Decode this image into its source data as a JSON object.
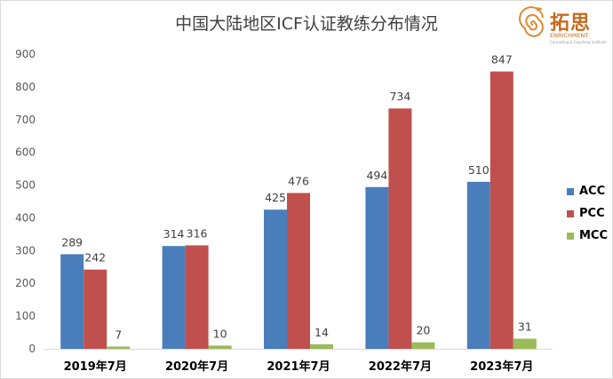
{
  "chart_data": {
    "type": "bar",
    "title": "中国大陆地区ICF认证教练分布情况",
    "categories": [
      "2019年7月",
      "2020年7月",
      "2021年7月",
      "2022年7月",
      "2023年7月"
    ],
    "series": [
      {
        "name": "ACC",
        "color": "#4a7ebb",
        "values": [
          289,
          314,
          425,
          494,
          510
        ]
      },
      {
        "name": "PCC",
        "color": "#c0504d",
        "values": [
          242,
          316,
          476,
          734,
          847
        ]
      },
      {
        "name": "MCC",
        "color": "#9bbb59",
        "values": [
          7,
          10,
          14,
          20,
          31
        ]
      }
    ],
    "ylim": [
      0,
      900
    ],
    "yticks": [
      0,
      100,
      200,
      300,
      400,
      500,
      600,
      700,
      800,
      900
    ],
    "grid": false,
    "data_labels": true,
    "legend": "right"
  },
  "logo": {
    "name_cn": "拓思",
    "name_en": "ENRICHMENT",
    "tagline": "Consulting & Coaching Institute"
  }
}
